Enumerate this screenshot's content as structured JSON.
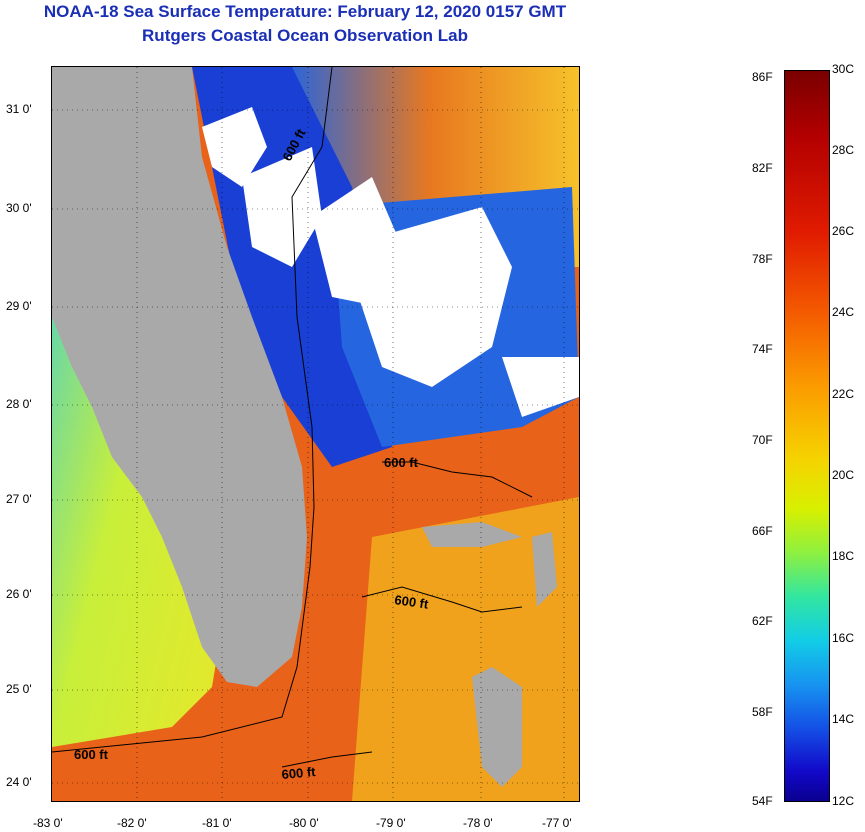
{
  "title": {
    "line1": "NOAA-18 Sea Surface Temperature:  February 12, 2020 0157 GMT",
    "line2": "Rutgers Coastal Ocean Observation Lab"
  },
  "map": {
    "lat_labels": [
      "31 0'",
      "30 0'",
      "29 0'",
      "28 0'",
      "27 0'",
      "26 0'",
      "25 0'",
      "24 0'"
    ],
    "lon_labels": [
      "-83 0'",
      "-82 0'",
      "-81 0'",
      "-80 0'",
      "-79 0'",
      "-78 0'",
      "-77 0'"
    ],
    "contour_label": "600 ft",
    "colors": {
      "land": "#a9a9a9",
      "cloud": "#ffffff",
      "warm_water": "#e8621a",
      "mid_water": "#f4b400",
      "cool_water": "#3fd0d8",
      "cold_water": "#1233c8"
    }
  },
  "colorbar": {
    "fahrenheit_labels": [
      "86F",
      "82F",
      "78F",
      "74F",
      "70F",
      "66F",
      "62F",
      "58F",
      "54F"
    ],
    "celsius_labels": [
      "30C",
      "28C",
      "26C",
      "24C",
      "22C",
      "20C",
      "18C",
      "16C",
      "14C",
      "12C"
    ]
  }
}
